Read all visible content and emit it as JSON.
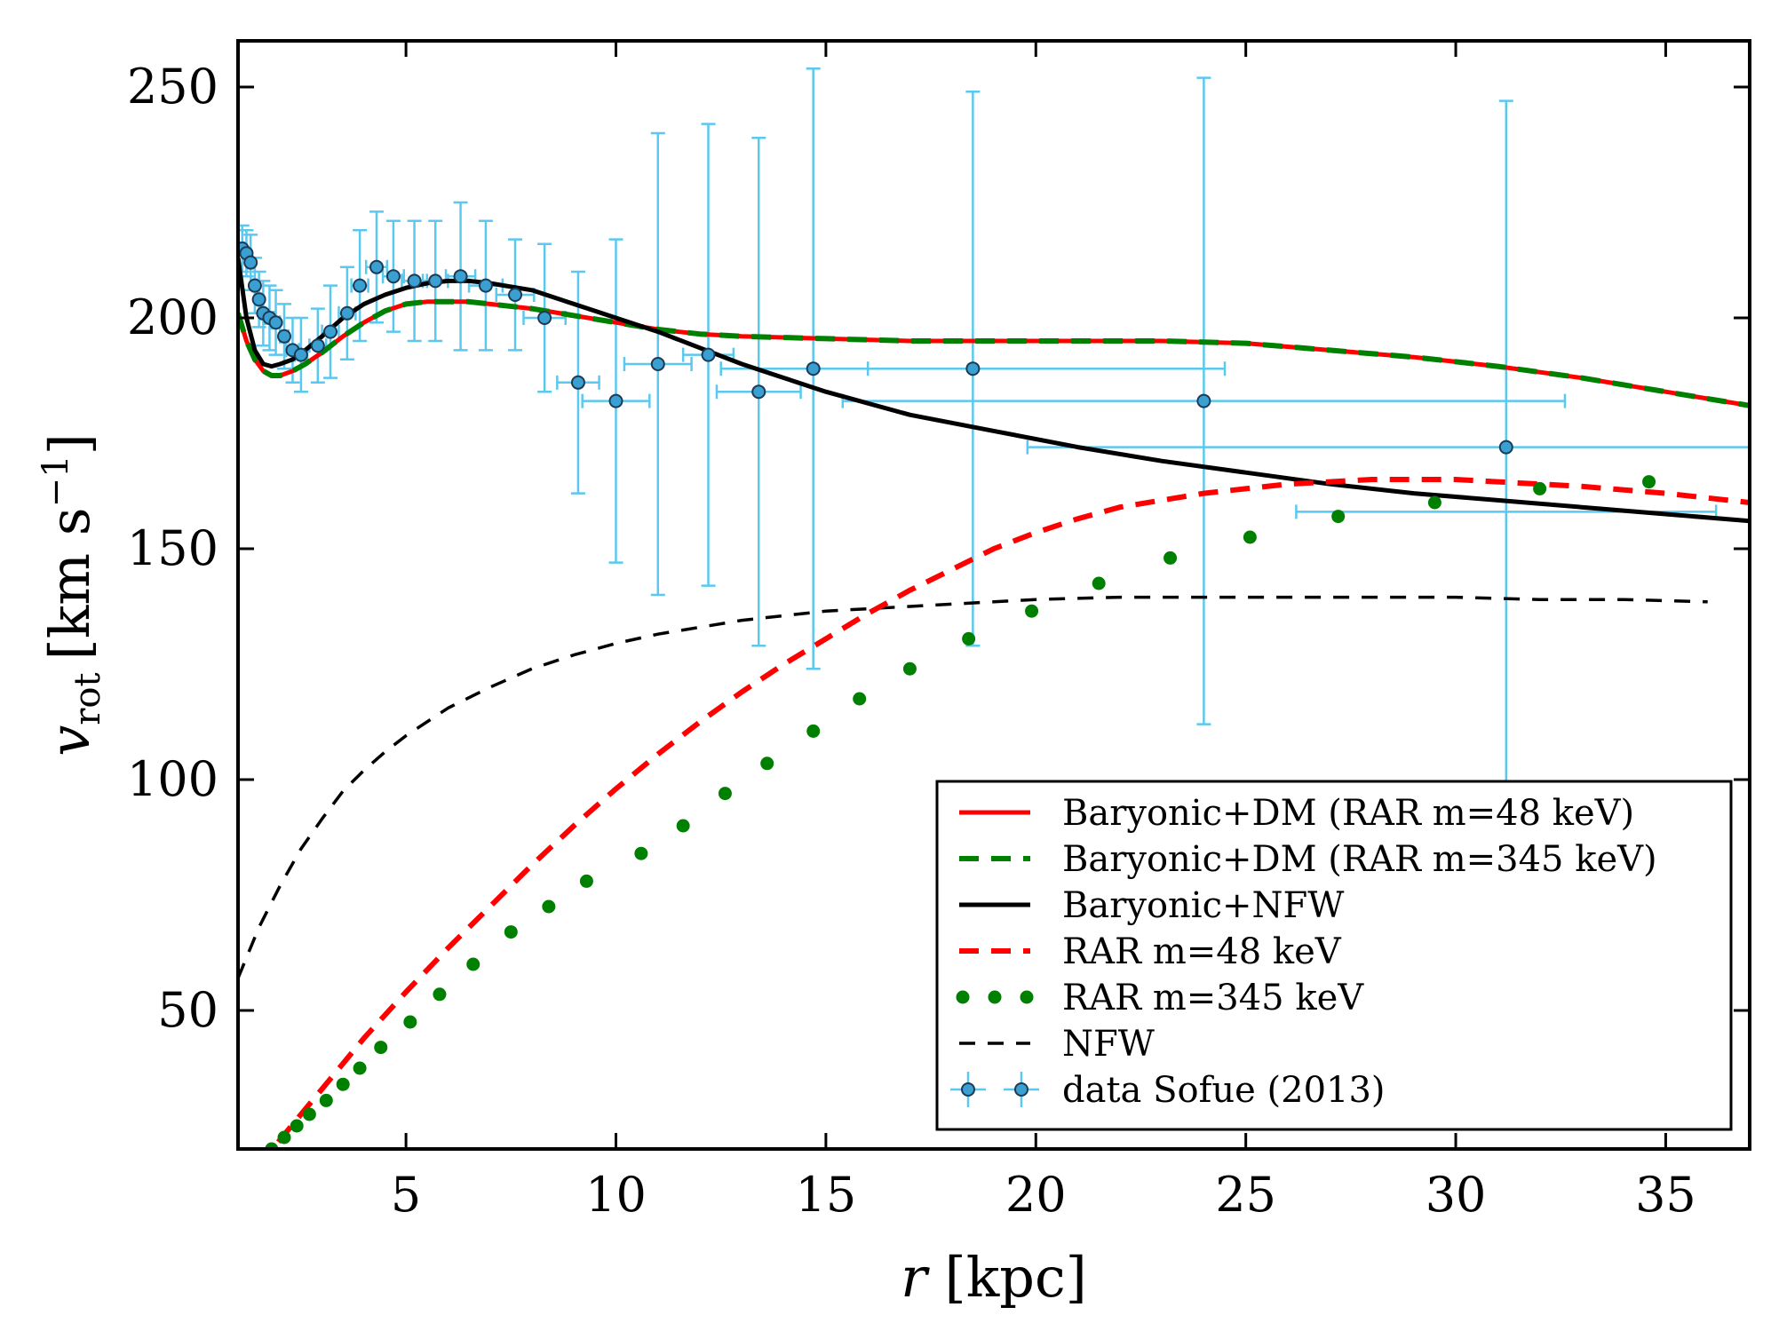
{
  "chart_data": {
    "type": "line",
    "xlabel": "r [kpc]",
    "ylabel_symbol": "v",
    "ylabel_sub": "rot",
    "ylabel_unit_prefix": "[km s",
    "ylabel_unit_exp": "−1",
    "ylabel_unit_suffix": "]",
    "xlim": [
      1,
      37
    ],
    "ylim": [
      20,
      260
    ],
    "xticks": [
      5,
      10,
      15,
      20,
      25,
      30,
      35
    ],
    "xtick_labels": [
      "5",
      "10",
      "15",
      "20",
      "25",
      "30",
      "35"
    ],
    "yticks": [
      50,
      100,
      150,
      200,
      250
    ],
    "ytick_labels": [
      "50",
      "100",
      "150",
      "200",
      "250"
    ],
    "grid": false,
    "legend_position": "lower-right",
    "series": [
      {
        "key": "bar_dm_48",
        "name": "Baryonic+DM (RAR m=48 keV)",
        "color": "#ff0000",
        "style": "solid",
        "x": [
          1.0,
          1.2,
          1.4,
          1.6,
          1.8,
          2.0,
          2.3,
          2.6,
          3.0,
          3.5,
          4.0,
          4.5,
          5.0,
          5.5,
          6.0,
          6.5,
          7.0,
          8.0,
          9.0,
          10.0,
          11.0,
          12.0,
          13.0,
          15.0,
          17.0,
          19.0,
          21.0,
          23.0,
          25.0,
          27.0,
          29.0,
          31.0,
          33.0,
          35.0,
          37.0
        ],
        "y": [
          201,
          195,
          191,
          188.5,
          187.5,
          187.5,
          188.5,
          190,
          192.5,
          196,
          199,
          201.5,
          203,
          203.5,
          203.5,
          203.5,
          203,
          202,
          200.5,
          199,
          197.5,
          196.5,
          196,
          195.5,
          195,
          195,
          195,
          195,
          194.5,
          193,
          191.5,
          189.5,
          187,
          184,
          181
        ]
      },
      {
        "key": "bar_dm_345",
        "name": "Baryonic+DM (RAR m=345 keV)",
        "color": "#008000",
        "style": "dashed",
        "x": [
          1.0,
          1.2,
          1.4,
          1.6,
          1.8,
          2.0,
          2.3,
          2.6,
          3.0,
          3.5,
          4.0,
          4.5,
          5.0,
          5.5,
          6.0,
          6.5,
          7.0,
          8.0,
          9.0,
          10.0,
          11.0,
          12.0,
          13.0,
          15.0,
          17.0,
          19.0,
          21.0,
          23.0,
          25.0,
          27.0,
          29.0,
          31.0,
          33.0,
          35.0,
          37.0
        ],
        "y": [
          201,
          195,
          191,
          188.5,
          187.5,
          187.5,
          188.5,
          190,
          192.5,
          196,
          199,
          201.5,
          203,
          203.5,
          203.5,
          203.5,
          203,
          202,
          200.5,
          199,
          197.5,
          196.5,
          196,
          195.5,
          195,
          195,
          195,
          195,
          194.5,
          193,
          191.5,
          189.5,
          187,
          184,
          181
        ]
      },
      {
        "key": "bar_nfw",
        "name": "Baryonic+NFW",
        "color": "#000000",
        "style": "solid",
        "x": [
          1.0,
          1.2,
          1.4,
          1.6,
          1.8,
          2.0,
          2.3,
          2.6,
          3.0,
          3.5,
          4.0,
          4.5,
          5.0,
          5.5,
          6.0,
          6.5,
          7.0,
          8.0,
          9.0,
          10.0,
          11.0,
          12.0,
          13.0,
          14.0,
          15.0,
          17.0,
          19.0,
          21.0,
          23.0,
          25.0,
          27.0,
          29.0,
          31.0,
          33.0,
          35.0,
          37.0
        ],
        "y": [
          213,
          200,
          193,
          190,
          189.5,
          190,
          191,
          193,
          196,
          200,
          203,
          205,
          206.5,
          207.5,
          208,
          208,
          207.5,
          206,
          203,
          200,
          197,
          193.5,
          190,
          187,
          184,
          179,
          175.5,
          172,
          169,
          166.5,
          164,
          162,
          160.5,
          159,
          157.5,
          156
        ]
      },
      {
        "key": "rar_48",
        "name": "RAR m=48 keV",
        "color": "#ff0000",
        "style": "dashed",
        "x": [
          1.5,
          2.0,
          2.5,
          3.0,
          3.5,
          4.0,
          5.0,
          6.0,
          7.0,
          8.0,
          9.0,
          10.0,
          11.0,
          12.0,
          13.0,
          14.0,
          15.0,
          16.0,
          17.0,
          18.0,
          19.0,
          20.0,
          21.0,
          22.0,
          23.0,
          24.0,
          25.0,
          26.0,
          27.0,
          28.0,
          29.0,
          30.0,
          31.0,
          33.0,
          35.0,
          37.0
        ],
        "y": [
          16,
          22,
          27.5,
          33,
          38.5,
          44,
          54,
          63.5,
          72.5,
          81.5,
          90,
          98,
          105.5,
          112.5,
          119,
          125,
          130.5,
          136,
          141,
          145.5,
          150,
          153.5,
          156.5,
          159,
          160.5,
          162,
          163,
          164,
          164.5,
          165,
          165,
          165,
          164.5,
          163.5,
          162,
          160
        ]
      },
      {
        "key": "rar_345",
        "name": "RAR m=345 keV",
        "color": "#008000",
        "style": "dots",
        "x": [
          1.8,
          2.1,
          2.4,
          2.7,
          3.1,
          3.5,
          3.9,
          4.4,
          5.1,
          5.8,
          6.6,
          7.5,
          8.4,
          9.3,
          10.6,
          11.6,
          12.6,
          13.6,
          14.7,
          15.8,
          17.0,
          18.4,
          19.9,
          21.5,
          23.2,
          25.1,
          27.2,
          29.5,
          32.0,
          34.6
        ],
        "y": [
          20,
          22.5,
          25,
          27.5,
          30.5,
          34,
          37.5,
          42,
          47.5,
          53.5,
          60,
          67,
          72.5,
          78,
          84,
          90,
          97,
          103.5,
          110.5,
          117.5,
          124,
          130.5,
          136.5,
          142.5,
          148,
          152.5,
          157,
          160,
          163,
          164.5
        ]
      },
      {
        "key": "nfw",
        "name": "NFW",
        "color": "#000000",
        "style": "dashed_thin",
        "x": [
          1.0,
          1.5,
          2.0,
          2.5,
          3.0,
          3.5,
          4.0,
          4.5,
          5.0,
          6.0,
          7.0,
          8.0,
          9.0,
          10.0,
          11.0,
          12.0,
          13.0,
          14.0,
          15.0,
          16.0,
          17.0,
          18.0,
          19.0,
          20.0,
          22.0,
          24.0,
          26.0,
          28.0,
          30.0,
          32.0,
          34.0,
          36.0
        ],
        "y": [
          57,
          68,
          77,
          85,
          91.5,
          97.5,
          102,
          106,
          109.5,
          115.5,
          120,
          124,
          127,
          129.5,
          131.5,
          133,
          134.5,
          135.5,
          136.5,
          137,
          137.5,
          138,
          138.5,
          139,
          139.5,
          139.5,
          139.5,
          139.5,
          139.5,
          139,
          139,
          138.5
        ]
      }
    ],
    "data_points": {
      "name": "data Sofue (2013)",
      "color": "#5bc8ef",
      "x": [
        1.1,
        1.2,
        1.3,
        1.4,
        1.5,
        1.6,
        1.75,
        1.9,
        2.1,
        2.3,
        2.5,
        2.9,
        3.2,
        3.6,
        3.9,
        4.3,
        4.7,
        5.2,
        5.7,
        6.3,
        6.9,
        7.6,
        8.3,
        9.1,
        10.0,
        11.0,
        12.2,
        13.4,
        14.7,
        18.5,
        24.0,
        31.2
      ],
      "y": [
        215,
        214,
        212,
        207,
        204,
        201,
        200,
        199,
        196,
        193,
        192,
        194,
        197,
        201,
        207,
        211,
        209,
        208,
        208,
        209,
        207,
        205,
        200,
        186,
        182,
        190,
        192,
        184,
        189,
        189,
        182,
        172
      ],
      "xerr": [
        0.05,
        0.05,
        0.05,
        0.05,
        0.05,
        0.05,
        0.1,
        0.1,
        0.1,
        0.15,
        0.15,
        0.2,
        0.2,
        0.2,
        0.2,
        0.25,
        0.25,
        0.3,
        0.3,
        0.35,
        0.4,
        0.45,
        0.5,
        0.5,
        0.8,
        0.8,
        0.6,
        1.0,
        1.3,
        6.0,
        8.6,
        11.4
      ],
      "yerr": [
        5,
        5,
        6,
        6,
        6,
        7,
        7,
        7,
        7,
        7,
        8,
        8,
        10,
        10,
        12,
        12,
        12,
        13,
        13,
        16,
        14,
        12,
        16,
        24,
        35,
        50,
        50,
        55,
        65,
        60,
        70,
        75
      ],
      "extra_bars": [
        {
          "x": 31.2,
          "y": 158,
          "xerr": 5.0
        }
      ]
    }
  }
}
